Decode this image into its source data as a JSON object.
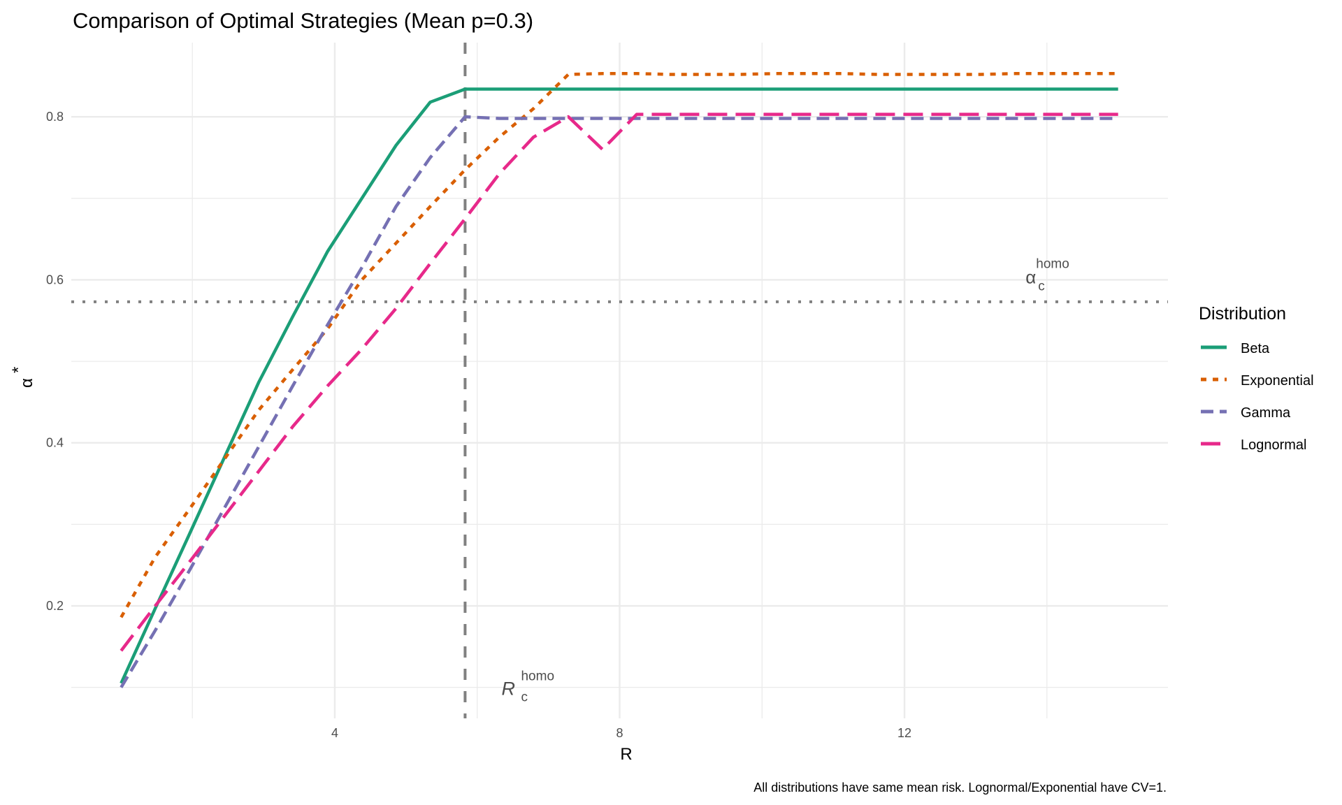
{
  "chart_data": {
    "type": "line",
    "title": "Comparison of Optimal Strategies (Mean p=0.3)",
    "xlabel": "R",
    "ylabel": "α*",
    "ylabel_base": "α",
    "ylabel_sup": "*",
    "caption": "All distributions have same mean risk. Lognormal/Exponential have CV=1.",
    "xlim": [
      0.3,
      15.7
    ],
    "ylim": [
      0.062,
      0.891
    ],
    "x_ticks": [
      4,
      8,
      12
    ],
    "x_tick_labels": [
      "4",
      "8",
      "12"
    ],
    "x_minor": [
      2,
      6,
      10,
      14
    ],
    "y_ticks": [
      0.2,
      0.4,
      0.6,
      0.8
    ],
    "y_tick_labels": [
      "0.2",
      "0.4",
      "0.6",
      "0.8"
    ],
    "y_minor": [
      0.1,
      0.3,
      0.5,
      0.7
    ],
    "grid": true,
    "legend": {
      "title": "Distribution",
      "placement": "right"
    },
    "x": [
      1.0,
      1.48,
      1.97,
      2.45,
      2.93,
      3.41,
      3.9,
      4.38,
      4.86,
      5.34,
      5.83,
      6.31,
      6.79,
      7.28,
      7.76,
      8.24,
      8.72,
      9.21,
      9.69,
      10.17,
      10.66,
      11.14,
      11.62,
      12.1,
      12.59,
      13.07,
      13.55,
      14.03,
      14.52,
      15.0
    ],
    "series": [
      {
        "name": "Beta",
        "color": "#1B9E77",
        "linetype": "solid",
        "values": [
          0.105,
          0.197,
          0.29,
          0.382,
          0.474,
          0.555,
          0.635,
          0.7,
          0.765,
          0.818,
          0.834,
          0.834,
          0.834,
          0.834,
          0.834,
          0.834,
          0.834,
          0.834,
          0.834,
          0.834,
          0.834,
          0.834,
          0.834,
          0.834,
          0.834,
          0.834,
          0.834,
          0.834,
          0.834,
          0.834
        ]
      },
      {
        "name": "Exponential",
        "color": "#D95F02",
        "linetype": "dotted",
        "values": [
          0.186,
          0.26,
          0.32,
          0.38,
          0.44,
          0.49,
          0.54,
          0.6,
          0.645,
          0.69,
          0.735,
          0.775,
          0.81,
          0.852,
          0.853,
          0.853,
          0.852,
          0.852,
          0.852,
          0.853,
          0.853,
          0.853,
          0.852,
          0.852,
          0.852,
          0.852,
          0.853,
          0.853,
          0.853,
          0.853
        ]
      },
      {
        "name": "Gamma",
        "color": "#7570B3",
        "linetype": "dashed",
        "values": [
          0.1,
          0.17,
          0.245,
          0.32,
          0.395,
          0.47,
          0.545,
          0.615,
          0.69,
          0.75,
          0.8,
          0.798,
          0.798,
          0.798,
          0.798,
          0.798,
          0.798,
          0.798,
          0.798,
          0.798,
          0.798,
          0.798,
          0.798,
          0.798,
          0.798,
          0.798,
          0.798,
          0.798,
          0.798,
          0.798
        ]
      },
      {
        "name": "Lognormal",
        "color": "#E7298A",
        "linetype": "longdash",
        "values": [
          0.145,
          0.2,
          0.255,
          0.31,
          0.365,
          0.42,
          0.47,
          0.515,
          0.565,
          0.62,
          0.675,
          0.73,
          0.775,
          0.8,
          0.76,
          0.803,
          0.803,
          0.803,
          0.803,
          0.803,
          0.803,
          0.803,
          0.803,
          0.803,
          0.803,
          0.803,
          0.803,
          0.803,
          0.803,
          0.803
        ]
      }
    ],
    "reference_lines": {
      "alpha_c_homo": 0.573,
      "R_c_homo": 5.83
    },
    "annotations": {
      "alpha": {
        "base": "α",
        "sub": "c",
        "sup": "homo",
        "x": 13.7,
        "y": 0.6
      },
      "R": {
        "base": "R",
        "sub": "c",
        "sup": "homo",
        "x": 6.4,
        "y": 0.1
      }
    },
    "ref_color": "#808080",
    "grid_color": "#ebebeb"
  }
}
